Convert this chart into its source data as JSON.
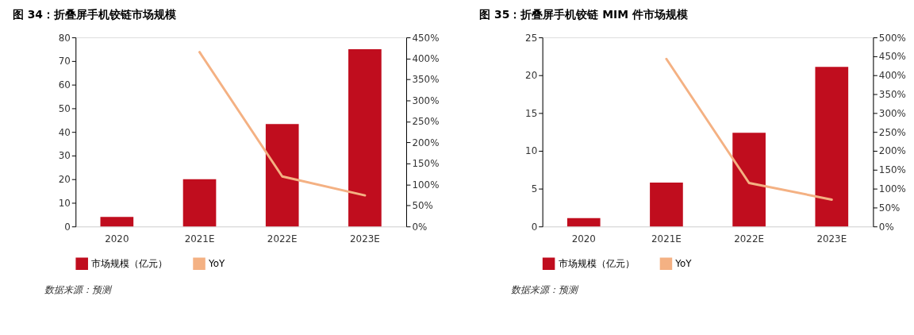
{
  "chart_data": [
    {
      "type": "bar",
      "title": "图 34：折叠屏手机铰链市场规模",
      "categories": [
        "2020",
        "2021E",
        "2022E",
        "2023E"
      ],
      "series": [
        {
          "name": "市场规模（亿元）",
          "color": "#c00d1e",
          "values": [
            4,
            20,
            43.3,
            75
          ]
        },
        {
          "name": "YoY",
          "type": "line",
          "axis": "y2",
          "color": "#f4b183",
          "values": [
            null,
            415,
            119,
            74
          ]
        }
      ],
      "ylim": [
        0,
        80
      ],
      "yticks": [
        0,
        10,
        20,
        30,
        40,
        50,
        60,
        70,
        80
      ],
      "y2lim": [
        0,
        450
      ],
      "y2ticks": [
        {
          "value": 0,
          "label": "0%"
        },
        {
          "value": 50,
          "label": "50%"
        },
        {
          "value": 100,
          "label": "100%"
        },
        {
          "value": 150,
          "label": "150%"
        },
        {
          "value": 200,
          "label": "200%"
        },
        {
          "value": 250,
          "label": "250%"
        },
        {
          "value": 300,
          "label": "300%"
        },
        {
          "value": 350,
          "label": "350%"
        },
        {
          "value": 400,
          "label": "400%"
        },
        {
          "value": 450,
          "label": "450%"
        }
      ],
      "grid": false,
      "legend": "bottom",
      "annotations": [
        "数据来源：预测"
      ]
    },
    {
      "type": "bar",
      "title": "图 35：折叠屏手机铰链 MIM 件市场规模",
      "categories": [
        "2020",
        "2021E",
        "2022E",
        "2023E"
      ],
      "series": [
        {
          "name": "市场规模（亿元）",
          "color": "#c00d1e",
          "values": [
            1.1,
            5.8,
            12.4,
            21.1
          ]
        },
        {
          "name": "YoY",
          "type": "line",
          "axis": "y2",
          "color": "#f4b183",
          "values": [
            null,
            443,
            115,
            71
          ]
        }
      ],
      "ylim": [
        0,
        25
      ],
      "yticks": [
        0,
        5,
        10,
        15,
        20,
        25
      ],
      "y2lim": [
        0,
        500
      ],
      "y2ticks": [
        {
          "value": 0,
          "label": "0%"
        },
        {
          "value": 50,
          "label": "50%"
        },
        {
          "value": 100,
          "label": "100%"
        },
        {
          "value": 150,
          "label": "150%"
        },
        {
          "value": 200,
          "label": "200%"
        },
        {
          "value": 250,
          "label": "250%"
        },
        {
          "value": 300,
          "label": "300%"
        },
        {
          "value": 350,
          "label": "350%"
        },
        {
          "value": 400,
          "label": "400%"
        },
        {
          "value": 450,
          "label": "450%"
        },
        {
          "value": 500,
          "label": "500%"
        }
      ],
      "grid": false,
      "legend": "bottom",
      "annotations": [
        "数据来源：预测"
      ]
    }
  ]
}
